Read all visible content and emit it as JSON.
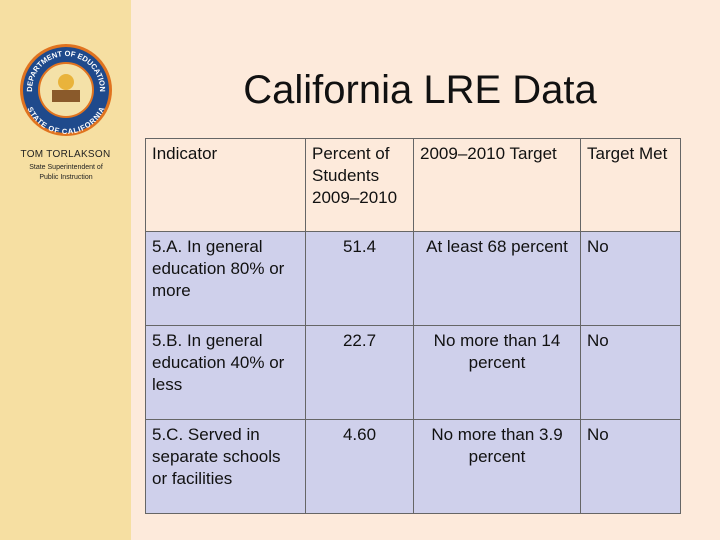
{
  "sidebar": {
    "seal_top": "DEPARTMENT OF EDUCATION",
    "seal_bottom": "STATE OF CALIFORNIA",
    "name": "TOM TORLAKSON",
    "role": "State Superintendent of Public Instruction"
  },
  "title": "California LRE Data",
  "table": {
    "header": [
      "Indicator",
      "Percent of Students 2009–2010",
      "2009–2010 Target",
      "Target Met"
    ],
    "rows": [
      [
        "5.A. In general education 80% or more",
        "51.4",
        "At least 68 percent",
        "No"
      ],
      [
        "5.B. In general education 40% or less",
        "22.7",
        "No more than 14 percent",
        "No"
      ],
      [
        "5.C. Served in separate schools or facilities",
        "4.60",
        "No more than 3.9 percent",
        "No"
      ]
    ]
  }
}
